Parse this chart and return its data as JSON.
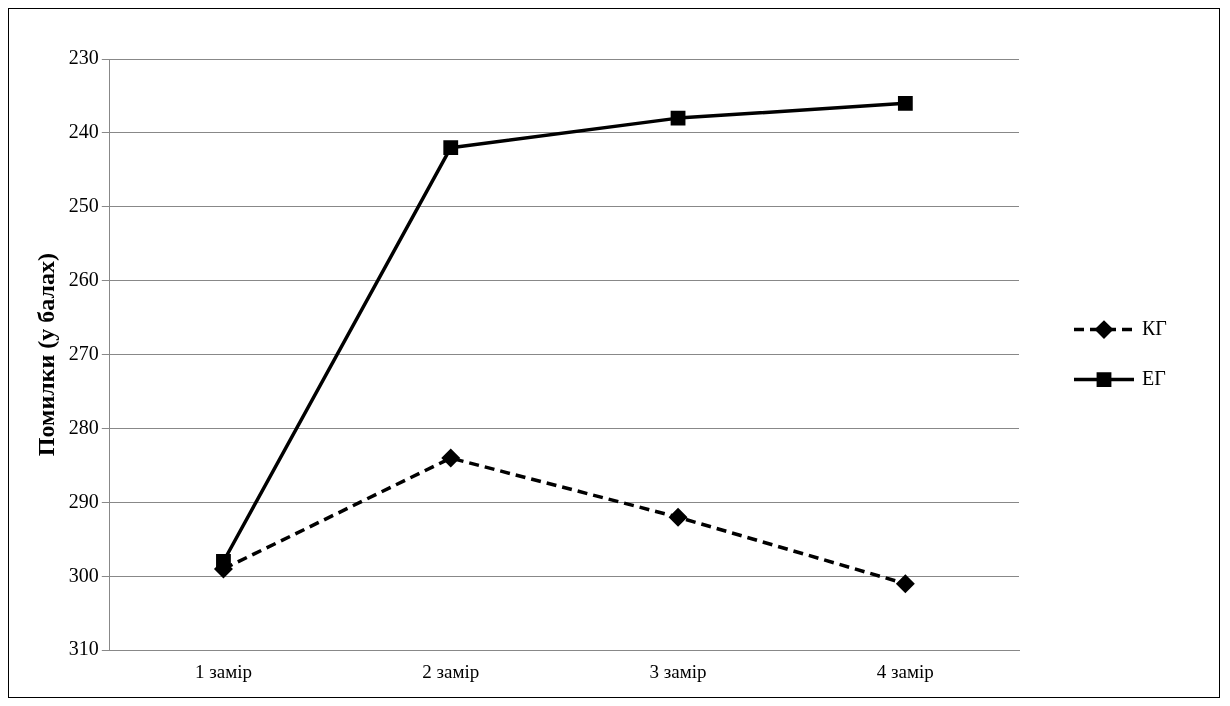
{
  "chart_data": {
    "type": "line",
    "ylabel": "Помилки (у балах)",
    "categories": [
      "1 замір",
      "2 замір",
      "3 замір",
      "4 замір"
    ],
    "series": [
      {
        "name": "КГ",
        "color": "#000000",
        "values": [
          299,
          284,
          292,
          301
        ],
        "marker": "diamond",
        "line_style": "dashed"
      },
      {
        "name": "ЕГ",
        "color": "#000000",
        "values": [
          298,
          242,
          238,
          236
        ],
        "marker": "square",
        "line_style": "solid"
      }
    ],
    "ylim": [
      310,
      230
    ],
    "yticks": [
      230,
      240,
      250,
      260,
      270,
      280,
      290,
      300,
      310
    ],
    "grid": "y",
    "legend": "right"
  }
}
